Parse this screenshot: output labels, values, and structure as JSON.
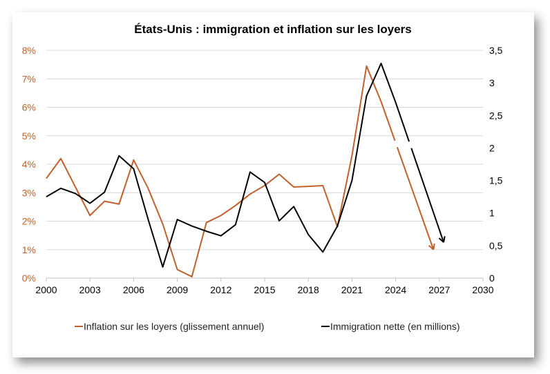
{
  "chart_data": {
    "type": "line",
    "title": "États-Unis : immigration et inflation sur les loyers",
    "x_ticks": [
      "2000",
      "2003",
      "2006",
      "2009",
      "2012",
      "2015",
      "2018",
      "2021",
      "2024",
      "2027",
      "2030"
    ],
    "xlim": [
      2000,
      2030
    ],
    "y_left": {
      "ticks": [
        "0%",
        "1%",
        "2%",
        "3%",
        "4%",
        "5%",
        "6%",
        "7%",
        "8%"
      ],
      "ylim": [
        0,
        8
      ],
      "color": "#c0602a"
    },
    "y_right": {
      "ticks": [
        "0",
        "0,5",
        "1",
        "1,5",
        "2",
        "2,5",
        "3",
        "3,5"
      ],
      "ylim": [
        0,
        3.5
      ],
      "color": "#000000"
    },
    "grid": true,
    "legend_position": "bottom",
    "series": [
      {
        "name": "Inflation sur les loyers (glissement annuel)",
        "axis": "left",
        "color": "#c0602a",
        "x": [
          2000,
          2001,
          2002,
          2003,
          2004,
          2005,
          2006,
          2007,
          2008,
          2009,
          2010,
          2011,
          2012,
          2013,
          2014,
          2015,
          2016,
          2017,
          2018,
          2019,
          2020,
          2021,
          2022,
          2023
        ],
        "y": [
          3.5,
          4.2,
          3.2,
          2.2,
          2.7,
          2.6,
          4.15,
          3.15,
          1.9,
          0.3,
          0.05,
          1.95,
          2.2,
          2.55,
          2.95,
          3.25,
          3.65,
          3.2,
          3.22,
          3.25,
          1.8,
          4.3,
          7.45,
          6.2
        ],
        "projection": {
          "x": [
            2023,
            2026.6
          ],
          "y": [
            6.2,
            1.0
          ]
        }
      },
      {
        "name": "Immigration nette (en millions)",
        "axis": "right",
        "color": "#000000",
        "x": [
          2000,
          2001,
          2002,
          2003,
          2004,
          2005,
          2006,
          2007,
          2008,
          2009,
          2010,
          2011,
          2012,
          2013,
          2014,
          2015,
          2016,
          2017,
          2018,
          2019,
          2020,
          2021,
          2022,
          2023,
          2024
        ],
        "y": [
          1.25,
          1.38,
          1.3,
          1.15,
          1.32,
          1.88,
          1.68,
          0.9,
          0.17,
          0.9,
          0.8,
          0.72,
          0.65,
          0.82,
          1.63,
          1.47,
          0.88,
          1.1,
          0.67,
          0.4,
          0.8,
          1.5,
          2.8,
          3.3,
          2.7
        ],
        "projection": {
          "x": [
            2024,
            2027.3
          ],
          "y": [
            2.7,
            0.55
          ]
        }
      }
    ]
  }
}
